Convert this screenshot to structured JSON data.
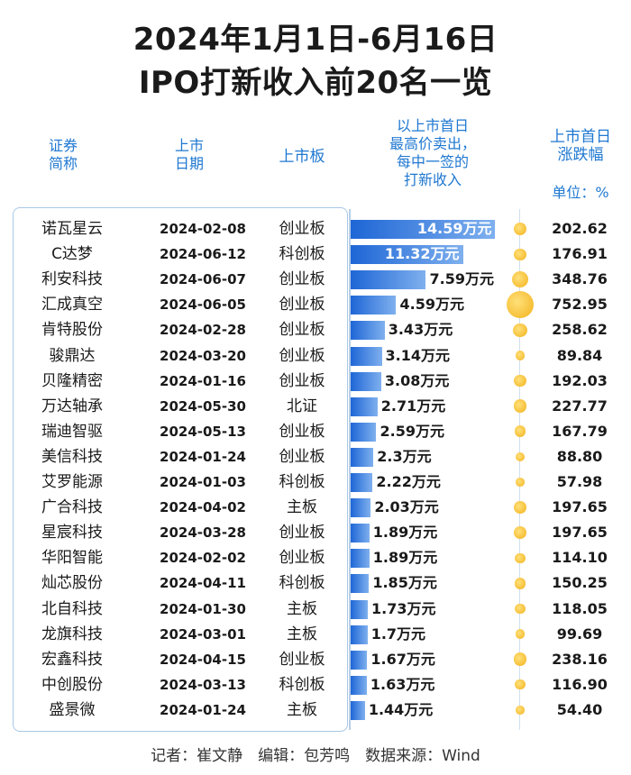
{
  "title_line1": "2024年1月1日-6月16日",
  "title_line2": "IPO打新收入前20名一览",
  "headers": {
    "name": "证券\n简称",
    "date": "上市\n日期",
    "board": "上市板",
    "income": "以上市首日\n最高价卖出，\n每中一签的\n打新收入",
    "change": "上市首日\n涨跌幅",
    "unit": "单位：%"
  },
  "footer": "记者：崔文静　编辑：包芳鸣　数据来源：Wind",
  "colors": {
    "accent": "#1f78d1",
    "bar": "#1e66d6",
    "dot": "#f2b21b"
  },
  "chart_data": {
    "type": "bar",
    "value_unit": "万元",
    "xlim": [
      0,
      16
    ],
    "rows": [
      {
        "name": "诺瓦星云",
        "date": "2024-02-08",
        "board": "创业板",
        "value": 14.59,
        "label": "14.59万元",
        "pct": "202.62"
      },
      {
        "name": "C达梦",
        "date": "2024-06-12",
        "board": "科创板",
        "value": 11.32,
        "label": "11.32万元",
        "pct": "176.91"
      },
      {
        "name": "利安科技",
        "date": "2024-06-07",
        "board": "创业板",
        "value": 7.59,
        "label": "7.59万元",
        "pct": "348.76"
      },
      {
        "name": "汇成真空",
        "date": "2024-06-05",
        "board": "创业板",
        "value": 4.59,
        "label": "4.59万元",
        "pct": "752.95"
      },
      {
        "name": "肯特股份",
        "date": "2024-02-28",
        "board": "创业板",
        "value": 3.43,
        "label": "3.43万元",
        "pct": "258.62"
      },
      {
        "name": "骏鼎达",
        "date": "2024-03-20",
        "board": "创业板",
        "value": 3.14,
        "label": "3.14万元",
        "pct": "89.84"
      },
      {
        "name": "贝隆精密",
        "date": "2024-01-16",
        "board": "创业板",
        "value": 3.08,
        "label": "3.08万元",
        "pct": "192.03"
      },
      {
        "name": "万达轴承",
        "date": "2024-05-30",
        "board": "北证",
        "value": 2.71,
        "label": "2.71万元",
        "pct": "227.77"
      },
      {
        "name": "瑞迪智驱",
        "date": "2024-05-13",
        "board": "创业板",
        "value": 2.59,
        "label": "2.59万元",
        "pct": "167.79"
      },
      {
        "name": "美信科技",
        "date": "2024-01-24",
        "board": "创业板",
        "value": 2.3,
        "label": "2.3万元",
        "pct": "88.80"
      },
      {
        "name": "艾罗能源",
        "date": "2024-01-03",
        "board": "科创板",
        "value": 2.22,
        "label": "2.22万元",
        "pct": "57.98"
      },
      {
        "name": "广合科技",
        "date": "2024-04-02",
        "board": "主板",
        "value": 2.03,
        "label": "2.03万元",
        "pct": "197.65"
      },
      {
        "name": "星宸科技",
        "date": "2024-03-28",
        "board": "创业板",
        "value": 1.89,
        "label": "1.89万元",
        "pct": "197.65"
      },
      {
        "name": "华阳智能",
        "date": "2024-02-02",
        "board": "创业板",
        "value": 1.89,
        "label": "1.89万元",
        "pct": "114.10"
      },
      {
        "name": "灿芯股份",
        "date": "2024-04-11",
        "board": "科创板",
        "value": 1.85,
        "label": "1.85万元",
        "pct": "150.25"
      },
      {
        "name": "北自科技",
        "date": "2024-01-30",
        "board": "主板",
        "value": 1.73,
        "label": "1.73万元",
        "pct": "118.05"
      },
      {
        "name": "龙旗科技",
        "date": "2024-03-01",
        "board": "主板",
        "value": 1.7,
        "label": "1.7万元",
        "pct": "99.69"
      },
      {
        "name": "宏鑫科技",
        "date": "2024-04-15",
        "board": "创业板",
        "value": 1.67,
        "label": "1.67万元",
        "pct": "238.16"
      },
      {
        "name": "中创股份",
        "date": "2024-03-13",
        "board": "科创板",
        "value": 1.63,
        "label": "1.63万元",
        "pct": "116.90"
      },
      {
        "name": "盛景微",
        "date": "2024-01-24",
        "board": "主板",
        "value": 1.44,
        "label": "1.44万元",
        "pct": "54.40"
      }
    ]
  }
}
